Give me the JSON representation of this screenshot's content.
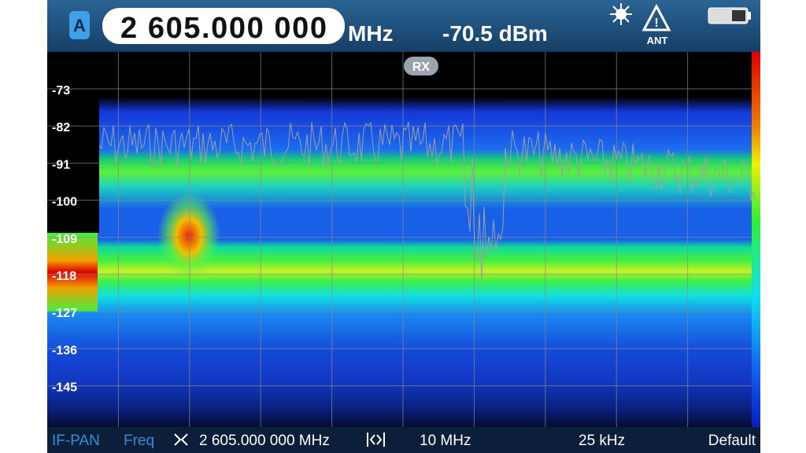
{
  "header": {
    "channel": "A",
    "frequency": "2 605.000 000",
    "frequency_unit": "MHz",
    "level": "-70.5 dBm",
    "antenna": "ANT"
  },
  "display": {
    "badge": "RX",
    "y_labels": [
      "-73",
      "-82",
      "-91",
      "-100",
      "-109",
      "-118",
      "-127",
      "-136",
      "-145"
    ]
  },
  "footer": {
    "mode": "IF-PAN",
    "parameter": "Freq",
    "center": "2 605.000 000 MHz",
    "span": "10 MHz",
    "resolution": "25 kHz",
    "preset": "Default"
  }
}
